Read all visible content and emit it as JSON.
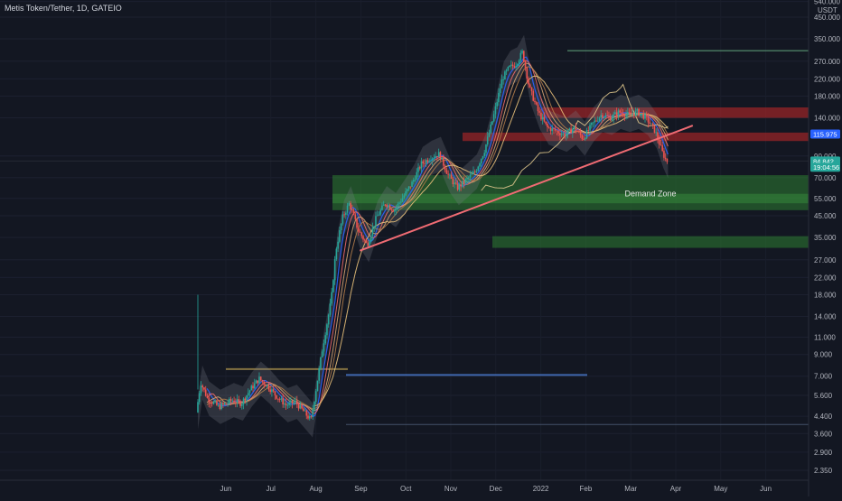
{
  "header": {
    "title": "Metis Token/Tether, 1D, GATEIO"
  },
  "chart_data": {
    "type": "candlestick",
    "title": "Metis Token/Tether, 1D, GATEIO",
    "y_scale": "log",
    "ylim": [
      2.1,
      500
    ],
    "y_unit": "USDT",
    "y_ticks": [
      {
        "label": "540.000",
        "value": 540
      },
      {
        "label": "450.000",
        "value": 450
      },
      {
        "label": "350.000",
        "value": 350
      },
      {
        "label": "270.000",
        "value": 270
      },
      {
        "label": "220.000",
        "value": 220
      },
      {
        "label": "180.000",
        "value": 180
      },
      {
        "label": "140.000",
        "value": 140
      },
      {
        "label": "90.000",
        "value": 90
      },
      {
        "label": "70.000",
        "value": 70
      },
      {
        "label": "55.000",
        "value": 55
      },
      {
        "label": "45.000",
        "value": 45
      },
      {
        "label": "35.000",
        "value": 35
      },
      {
        "label": "27.000",
        "value": 27
      },
      {
        "label": "22.000",
        "value": 22
      },
      {
        "label": "18.000",
        "value": 18
      },
      {
        "label": "14.000",
        "value": 14
      },
      {
        "label": "11.000",
        "value": 11
      },
      {
        "label": "9.000",
        "value": 9
      },
      {
        "label": "7.000",
        "value": 7
      },
      {
        "label": "5.600",
        "value": 5.6
      },
      {
        "label": "4.400",
        "value": 4.4
      },
      {
        "label": "3.600",
        "value": 3.6
      },
      {
        "label": "2.900",
        "value": 2.9
      },
      {
        "label": "2.350",
        "value": 2.35
      }
    ],
    "x_ticks": [
      "Jun",
      "Jul",
      "Aug",
      "Sep",
      "Oct",
      "Nov",
      "Dec",
      "2022",
      "Feb",
      "Mar",
      "Apr",
      "May",
      "Jun"
    ],
    "price_series": [
      {
        "m": 0.0,
        "v": 4.6
      },
      {
        "m": 0.1,
        "v": 6.5
      },
      {
        "m": 0.25,
        "v": 5.4
      },
      {
        "m": 0.5,
        "v": 4.9
      },
      {
        "m": 0.8,
        "v": 5.3
      },
      {
        "m": 1.0,
        "v": 5.1
      },
      {
        "m": 1.2,
        "v": 6.0
      },
      {
        "m": 1.4,
        "v": 6.8
      },
      {
        "m": 1.6,
        "v": 6.2
      },
      {
        "m": 1.8,
        "v": 5.5
      },
      {
        "m": 2.0,
        "v": 5.0
      },
      {
        "m": 2.2,
        "v": 5.2
      },
      {
        "m": 2.4,
        "v": 4.6
      },
      {
        "m": 2.55,
        "v": 4.2
      },
      {
        "m": 2.65,
        "v": 5.8
      },
      {
        "m": 2.8,
        "v": 9.5
      },
      {
        "m": 3.0,
        "v": 17
      },
      {
        "m": 3.1,
        "v": 30
      },
      {
        "m": 3.25,
        "v": 44
      },
      {
        "m": 3.4,
        "v": 52
      },
      {
        "m": 3.6,
        "v": 38
      },
      {
        "m": 3.8,
        "v": 32
      },
      {
        "m": 4.0,
        "v": 44
      },
      {
        "m": 4.2,
        "v": 52
      },
      {
        "m": 4.4,
        "v": 48
      },
      {
        "m": 4.6,
        "v": 56
      },
      {
        "m": 4.8,
        "v": 66
      },
      {
        "m": 5.0,
        "v": 82
      },
      {
        "m": 5.2,
        "v": 88
      },
      {
        "m": 5.4,
        "v": 92
      },
      {
        "m": 5.6,
        "v": 72
      },
      {
        "m": 5.8,
        "v": 62
      },
      {
        "m": 6.0,
        "v": 68
      },
      {
        "m": 6.2,
        "v": 75
      },
      {
        "m": 6.4,
        "v": 95
      },
      {
        "m": 6.6,
        "v": 140
      },
      {
        "m": 6.8,
        "v": 220
      },
      {
        "m": 6.95,
        "v": 250
      },
      {
        "m": 7.1,
        "v": 260
      },
      {
        "m": 7.25,
        "v": 300
      },
      {
        "m": 7.4,
        "v": 200
      },
      {
        "m": 7.6,
        "v": 150
      },
      {
        "m": 7.8,
        "v": 125
      },
      {
        "m": 8.0,
        "v": 120
      },
      {
        "m": 8.2,
        "v": 115
      },
      {
        "m": 8.4,
        "v": 125
      },
      {
        "m": 8.6,
        "v": 110
      },
      {
        "m": 8.8,
        "v": 130
      },
      {
        "m": 9.0,
        "v": 145
      },
      {
        "m": 9.2,
        "v": 140
      },
      {
        "m": 9.4,
        "v": 150
      },
      {
        "m": 9.6,
        "v": 145
      },
      {
        "m": 9.8,
        "v": 150
      },
      {
        "m": 10.0,
        "v": 140
      },
      {
        "m": 10.2,
        "v": 120
      },
      {
        "m": 10.35,
        "v": 95
      },
      {
        "m": 10.45,
        "v": 84.84
      }
    ],
    "zones": [
      {
        "label": "Demand Zone",
        "low": 48,
        "high": 72
      },
      {
        "label": "",
        "low": 31,
        "high": 35.5
      }
    ],
    "resistance_zones": [
      {
        "low": 140,
        "high": 158
      },
      {
        "low": 107,
        "high": 118
      }
    ],
    "horizontal_lines": [
      {
        "value": 305,
        "color": "#76c893"
      },
      {
        "value": 7.1,
        "color": "#4a7bd0"
      },
      {
        "value": 4.0,
        "color": "#50607a"
      },
      {
        "value": 84.84,
        "color": "#2a2e39"
      }
    ],
    "trendline": {
      "from": {
        "m": 3.6,
        "v": 30
      },
      "to": {
        "m": 11.0,
        "v": 128
      },
      "color": "#f06b73"
    },
    "price_tags": [
      {
        "label": "115.975",
        "value": 115.975,
        "color": "#2962ff"
      },
      {
        "label": "84.842",
        "value": 84.842,
        "color": "#26a69a"
      },
      {
        "label": "19:04:56",
        "value": 79,
        "color": "#26a69a"
      }
    ],
    "colors": {
      "up": "#26a69a",
      "down": "#ef5350",
      "background": "#131722"
    }
  }
}
